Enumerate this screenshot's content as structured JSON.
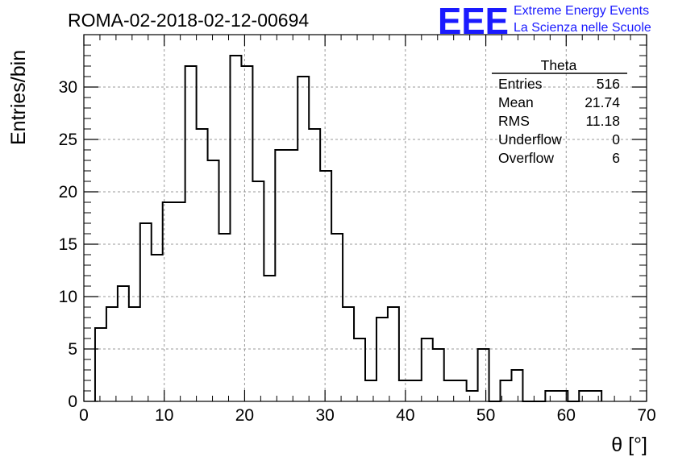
{
  "chart_data": {
    "type": "bar",
    "title": "ROMA-02-2018-02-12-00694",
    "xlabel": "θ [°]",
    "ylabel": "Entries/bin",
    "xlim": [
      0,
      70
    ],
    "ylim": [
      0,
      35
    ],
    "bin_width": 1.4,
    "x_start": 1.4,
    "values": [
      7,
      9,
      11,
      9,
      17,
      14,
      19,
      19,
      32,
      26,
      23,
      16,
      33,
      32,
      21,
      12,
      24,
      24,
      31,
      26,
      22,
      16,
      9,
      6,
      2,
      8,
      9,
      2,
      2,
      6,
      5,
      2,
      2,
      1,
      5,
      0,
      2,
      3,
      0,
      0,
      1,
      1,
      0,
      1,
      1
    ],
    "x_ticks": [
      0,
      10,
      20,
      30,
      40,
      50,
      60,
      70
    ],
    "y_ticks": [
      0,
      5,
      10,
      15,
      20,
      25,
      30
    ],
    "grid": true,
    "legend": "top-right",
    "stats": {
      "name": "Theta",
      "rows": [
        {
          "label": "Entries",
          "value": "516"
        },
        {
          "label": "Mean",
          "value": "21.74"
        },
        {
          "label": "RMS",
          "value": "11.18"
        },
        {
          "label": "Underflow",
          "value": "0"
        },
        {
          "label": "Overflow",
          "value": "6"
        }
      ]
    }
  },
  "logo": {
    "mark": "EEE",
    "line1": "Extreme Energy Events",
    "line2": "La Scienza nelle Scuole"
  },
  "colors": {
    "line": "#000000",
    "grid": "#999999",
    "logo": "#1a1aff"
  }
}
